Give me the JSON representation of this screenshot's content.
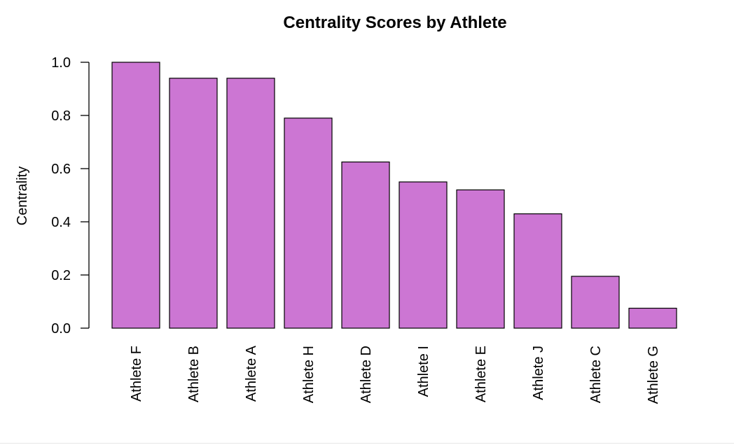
{
  "chart_data": {
    "type": "bar",
    "title": "Centrality Scores by Athlete",
    "xlabel": "",
    "ylabel": "Centrality",
    "categories": [
      "Athlete F",
      "Athlete B",
      "Athlete A",
      "Athlete H",
      "Athlete D",
      "Athlete I",
      "Athlete E",
      "Athlete J",
      "Athlete C",
      "Athlete G"
    ],
    "values": [
      1.0,
      0.94,
      0.94,
      0.79,
      0.625,
      0.55,
      0.52,
      0.43,
      0.195,
      0.075
    ],
    "ylim": [
      0,
      1.0
    ],
    "yticks": [
      "0.0",
      "0.2",
      "0.4",
      "0.6",
      "0.8",
      "1.0"
    ],
    "grid": false,
    "legend": "none",
    "colors": {
      "bar_fill": "#cc76d3",
      "bar_stroke": "#000000",
      "axis": "#000000"
    }
  }
}
